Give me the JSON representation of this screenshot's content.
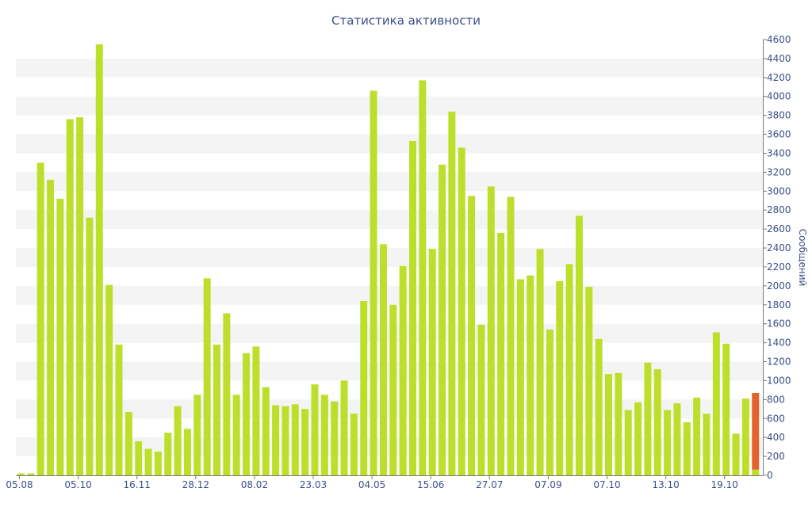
{
  "chart_data": {
    "type": "bar",
    "title": "Статистика активности",
    "xlabel": "",
    "ylabel": "Сообщений",
    "ylim": [
      0,
      4600
    ],
    "y_ticks": [
      0,
      200,
      400,
      600,
      800,
      1000,
      1200,
      1400,
      1600,
      1800,
      2000,
      2200,
      2400,
      2600,
      2800,
      3000,
      3200,
      3400,
      3600,
      3800,
      4000,
      4200,
      4400,
      4600
    ],
    "y_axis_position": "right",
    "grid": "alternating horizontal bands",
    "x_tick_labels": [
      {
        "index": 0,
        "label": "05.08"
      },
      {
        "index": 6,
        "label": "05.10"
      },
      {
        "index": 12,
        "label": "16.11"
      },
      {
        "index": 18,
        "label": "28.12"
      },
      {
        "index": 24,
        "label": "08.02"
      },
      {
        "index": 30,
        "label": "23.03"
      },
      {
        "index": 36,
        "label": "04.05"
      },
      {
        "index": 42,
        "label": "15.06"
      },
      {
        "index": 48,
        "label": "27.07"
      },
      {
        "index": 54,
        "label": "07.09"
      },
      {
        "index": 60,
        "label": "07.10"
      },
      {
        "index": 66,
        "label": "13.10"
      },
      {
        "index": 72,
        "label": "19.10"
      }
    ],
    "series": [
      {
        "color": "#bddf2b",
        "values": [
          20,
          20,
          3300,
          3120,
          2920,
          3760,
          3780,
          2720,
          4550,
          2010,
          1380,
          670,
          360,
          280,
          250,
          450,
          730,
          490,
          850,
          2080,
          1380,
          1710,
          850,
          1290,
          1360,
          930,
          740,
          730,
          750,
          700,
          960,
          850,
          780,
          1000,
          650,
          1840,
          4060,
          2440,
          1800,
          2210,
          3530,
          4170,
          2390,
          3280,
          3840,
          3460,
          2950,
          1590,
          3050,
          2560,
          2940,
          2070,
          2110,
          2390,
          1540,
          2050,
          2230,
          2740,
          1990,
          1440,
          1070,
          1080,
          690,
          770,
          1190,
          1120,
          690,
          760,
          560,
          820,
          650,
          1510,
          1390,
          440,
          810,
          60
        ]
      },
      {
        "color": "#e4632b",
        "values": [
          0,
          0,
          0,
          0,
          0,
          0,
          0,
          0,
          0,
          0,
          0,
          0,
          0,
          0,
          0,
          0,
          0,
          0,
          0,
          0,
          0,
          0,
          0,
          0,
          0,
          0,
          0,
          0,
          0,
          0,
          0,
          0,
          0,
          0,
          0,
          0,
          0,
          0,
          0,
          0,
          0,
          0,
          0,
          0,
          0,
          0,
          0,
          0,
          0,
          0,
          0,
          0,
          0,
          0,
          0,
          0,
          0,
          0,
          0,
          0,
          0,
          0,
          0,
          0,
          0,
          0,
          0,
          0,
          0,
          0,
          0,
          0,
          0,
          0,
          0,
          810
        ]
      }
    ],
    "colors": {
      "axis_text": "#3c4f8a",
      "band": "#f4f4f4",
      "axis_line": "#7a7a7a"
    }
  }
}
